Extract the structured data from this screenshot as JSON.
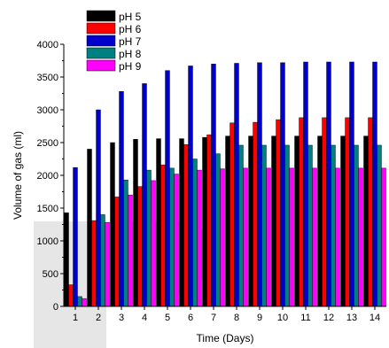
{
  "chart_data": {
    "type": "bar",
    "xlabel": "Time (Days)",
    "ylabel": "Volume of gas (ml)",
    "ylim": [
      0,
      4000
    ],
    "yticks": [
      0,
      500,
      1000,
      1500,
      2000,
      2500,
      3000,
      3500,
      4000
    ],
    "categories": [
      "1",
      "2",
      "3",
      "4",
      "5",
      "6",
      "7",
      "8",
      "9",
      "10",
      "11",
      "12",
      "13",
      "14"
    ],
    "legend_position": "top-left",
    "grid": false,
    "series": [
      {
        "name": "pH 5",
        "color": "#000000",
        "values": [
          1430,
          2400,
          2500,
          2550,
          2560,
          2560,
          2580,
          2600,
          2600,
          2600,
          2600,
          2600,
          2600,
          2600
        ]
      },
      {
        "name": "pH 6",
        "color": "#ff0000",
        "values": [
          330,
          1310,
          1670,
          1830,
          2160,
          2470,
          2620,
          2800,
          2810,
          2850,
          2880,
          2880,
          2880,
          2880
        ]
      },
      {
        "name": "pH 7",
        "color": "#0000cc",
        "values": [
          2120,
          3000,
          3280,
          3400,
          3600,
          3670,
          3700,
          3710,
          3720,
          3720,
          3730,
          3730,
          3730,
          3730
        ]
      },
      {
        "name": "pH 8",
        "color": "#008080",
        "values": [
          150,
          1400,
          1930,
          2080,
          2110,
          2250,
          2330,
          2460,
          2460,
          2460,
          2460,
          2460,
          2460,
          2460
        ]
      },
      {
        "name": "pH 9",
        "color": "#ff00ff",
        "values": [
          120,
          1280,
          1700,
          1920,
          2020,
          2080,
          2100,
          2110,
          2110,
          2110,
          2110,
          2110,
          2110,
          2110
        ]
      }
    ]
  }
}
